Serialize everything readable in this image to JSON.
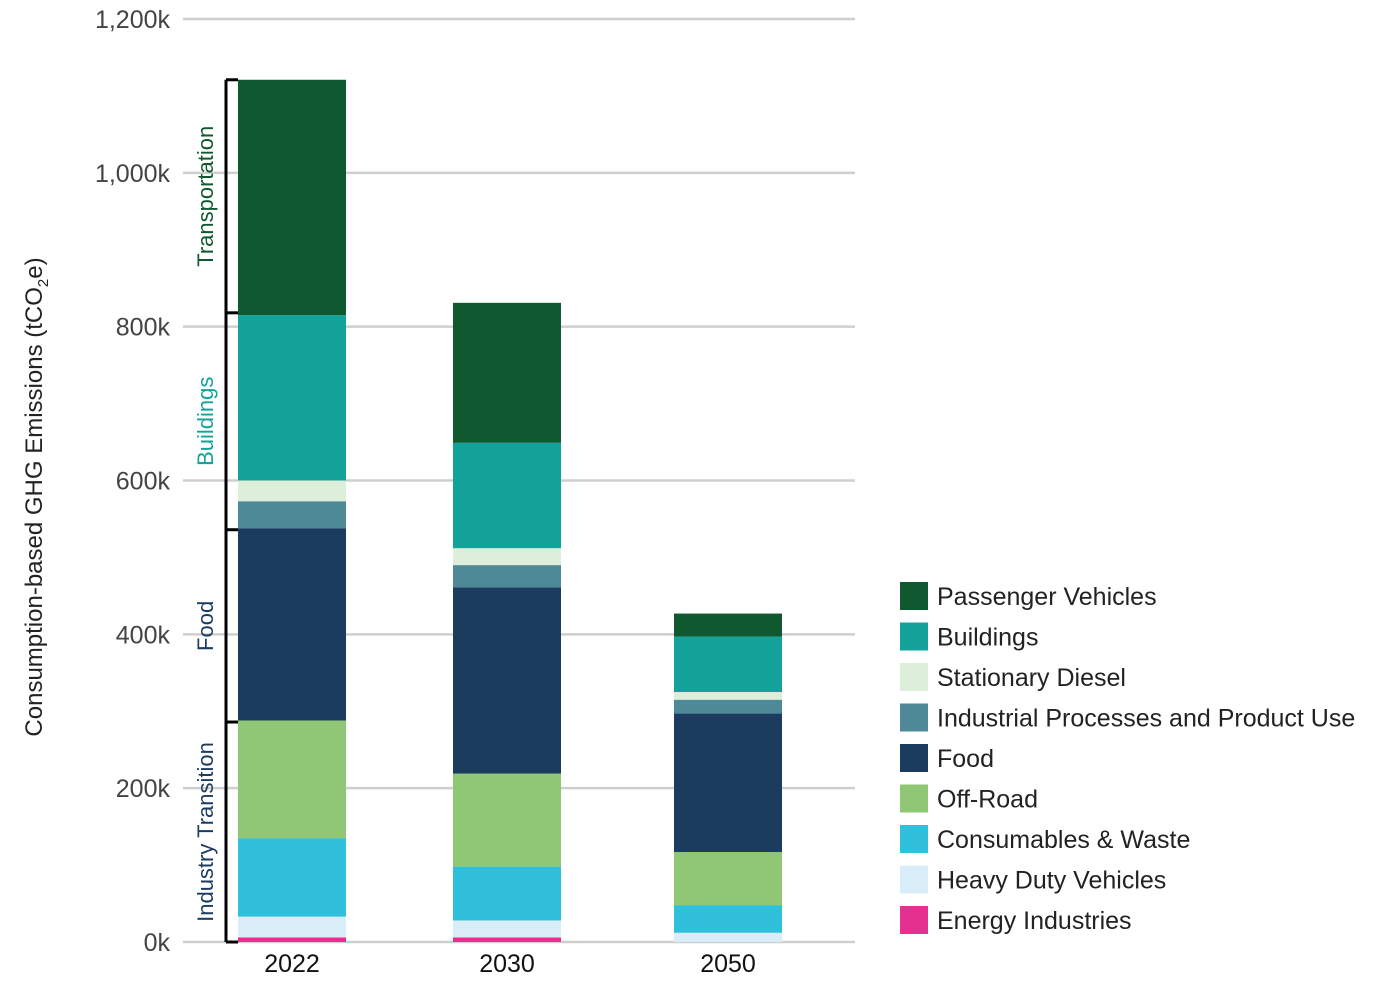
{
  "chart_data": {
    "type": "bar",
    "stacked": true,
    "ylabel_main": "Consumption-based GHG Emissions (tCO",
    "ylabel_sub": "2",
    "ylabel_tail": "e)",
    "ylim": [
      0,
      1200000
    ],
    "yticks": [
      {
        "value": 0,
        "label": "0k"
      },
      {
        "value": 200000,
        "label": "200k"
      },
      {
        "value": 400000,
        "label": "400k"
      },
      {
        "value": 600000,
        "label": "600k"
      },
      {
        "value": 800000,
        "label": "800k"
      },
      {
        "value": 1000000,
        "label": "1,000k"
      },
      {
        "value": 1200000,
        "label": "1,200k"
      }
    ],
    "grid": true,
    "legend_position": "bottom-right",
    "categories": [
      "2022",
      "2030",
      "2050"
    ],
    "series": [
      {
        "name": "Energy Industries",
        "color": "#e6308f",
        "values": [
          6000,
          6000,
          0
        ]
      },
      {
        "name": "Heavy Duty Vehicles",
        "color": "#d8edf7",
        "values": [
          27000,
          22000,
          12000
        ]
      },
      {
        "name": "Consumables & Waste",
        "color": "#30c0dc",
        "values": [
          102000,
          70000,
          36000
        ]
      },
      {
        "name": "Off-Road",
        "color": "#8fc774",
        "values": [
          153000,
          121000,
          69000
        ]
      },
      {
        "name": "Food",
        "color": "#1b3b5f",
        "values": [
          250000,
          242000,
          180000
        ]
      },
      {
        "name": "Industrial Processes and Product Use",
        "color": "#4e8997",
        "values": [
          35000,
          29000,
          18000
        ]
      },
      {
        "name": "Stationary Diesel",
        "color": "#ddeedb",
        "values": [
          27000,
          22000,
          10000
        ]
      },
      {
        "name": "Buildings",
        "color": "#13a39a",
        "values": [
          215000,
          137000,
          72000
        ]
      },
      {
        "name": "Passenger Vehicles",
        "color": "#10582f",
        "values": [
          306000,
          182000,
          30000
        ]
      }
    ],
    "legend_order": [
      "Passenger Vehicles",
      "Buildings",
      "Stationary Diesel",
      "Industrial Processes and Product Use",
      "Food",
      "Off-Road",
      "Consumables & Waste",
      "Heavy Duty Vehicles",
      "Energy Industries"
    ],
    "group_brackets": [
      {
        "label": "Transportation",
        "color": "#10582f",
        "from": 818000,
        "to": 1121000
      },
      {
        "label": "Buildings",
        "color": "#13a39a",
        "from": 536000,
        "to": 818000
      },
      {
        "label": "Food",
        "color": "#1b3b5f",
        "from": 286000,
        "to": 536000
      },
      {
        "label": "Industry Transition",
        "color": "#1b3b5f",
        "from": 0,
        "to": 286000
      }
    ]
  }
}
